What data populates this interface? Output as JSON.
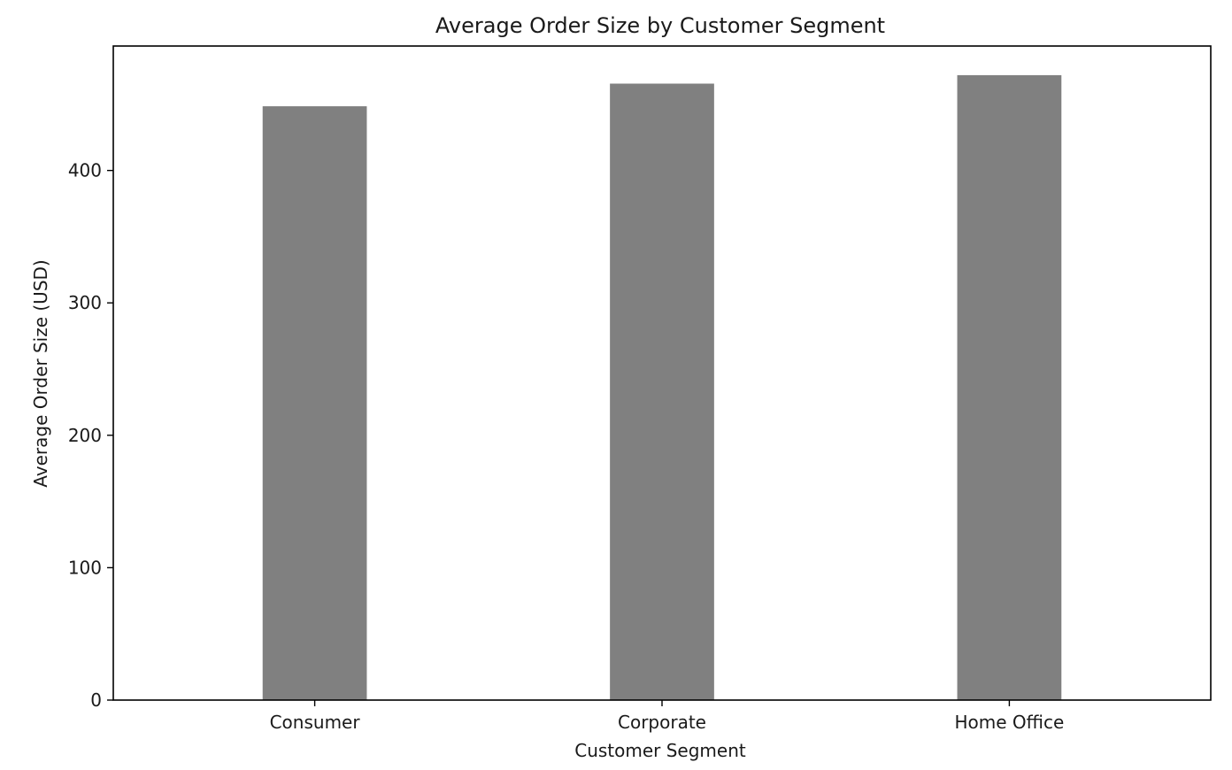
{
  "chart_data": {
    "type": "bar",
    "title": "Average Order Size by Customer Segment",
    "xlabel": "Customer Segment",
    "ylabel": "Average Order Size (USD)",
    "categories": [
      "Consumer",
      "Corporate",
      "Home Office"
    ],
    "values": [
      448.5,
      465.6,
      472.0
    ],
    "ylim": [
      0,
      494
    ],
    "yticks": [
      0,
      100,
      200,
      300,
      400
    ],
    "bar_color": "#808080",
    "grid": false,
    "legend": "none"
  }
}
